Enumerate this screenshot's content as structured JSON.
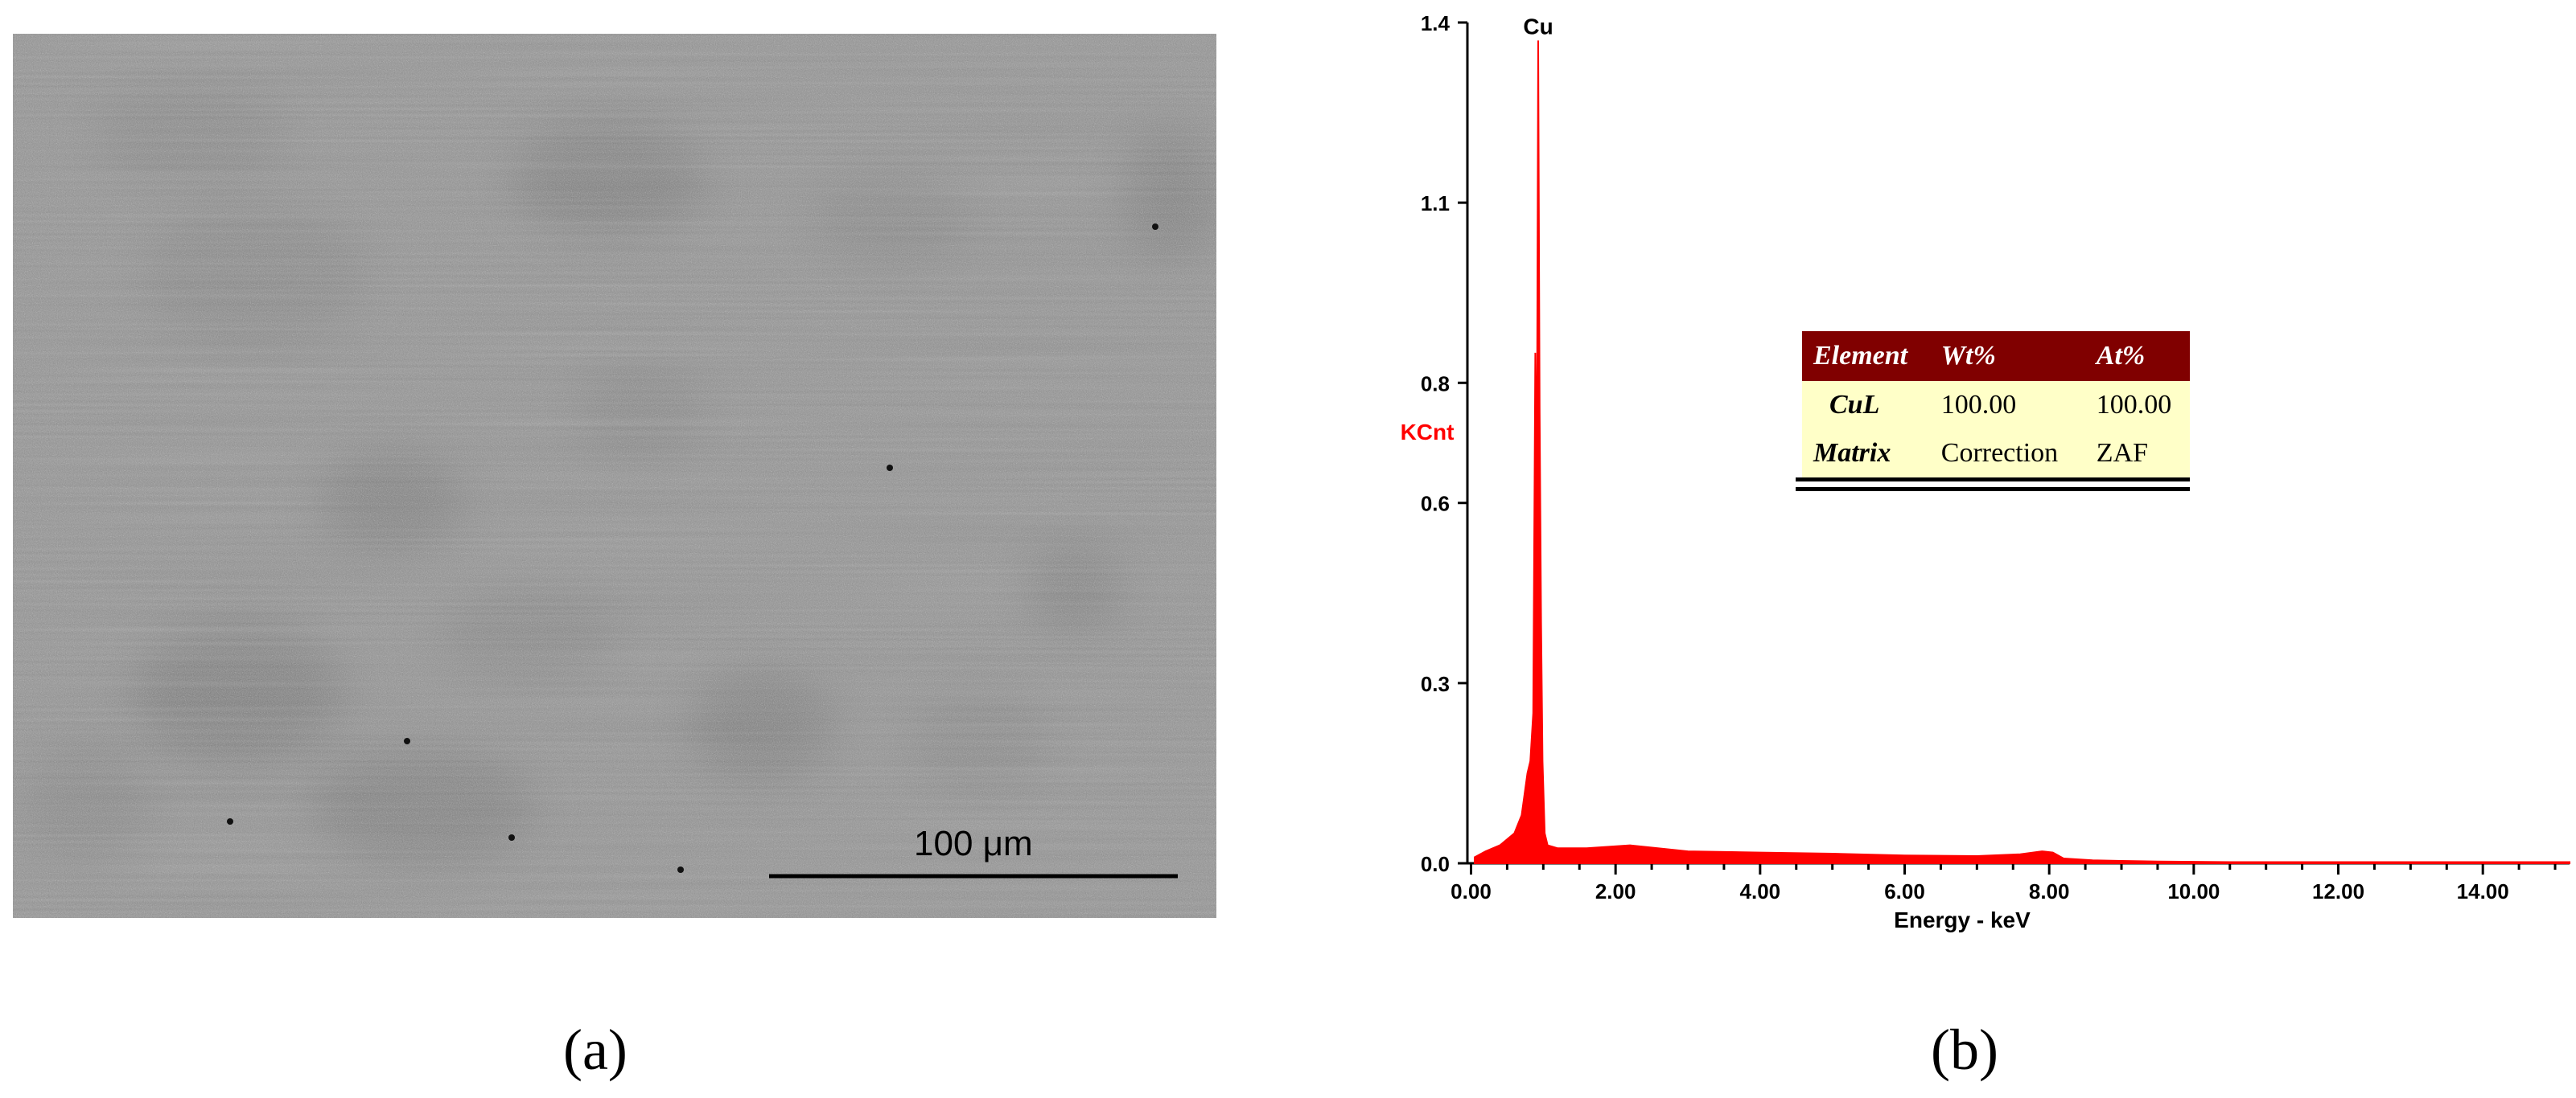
{
  "panel_a": {
    "label": "(a)",
    "scale_bar_text": "100 μm",
    "image_colors": {
      "background": "#8d8d8d",
      "grain_dark": "#6a6a6a",
      "grain_mid": "#7a7a7a"
    }
  },
  "panel_b": {
    "label": "(b)",
    "table": {
      "headers": [
        "Element",
        "Wt%",
        "At%"
      ],
      "rows": [
        [
          "CuL",
          "100.00",
          "100.00"
        ],
        [
          "Matrix",
          "Correction",
          "ZAF"
        ]
      ],
      "colors": {
        "header_bg": "#800000",
        "header_text": "#ffffff",
        "body_bg": "#ffffc8"
      }
    }
  },
  "chart_data": {
    "type": "line",
    "title": "",
    "xlabel": "Energy - keV",
    "ylabel": "KCnt",
    "xlim": [
      -0.05,
      15.2
    ],
    "ylim": [
      0,
      1.4
    ],
    "x_ticks": [
      "0.00",
      "2.00",
      "4.00",
      "6.00",
      "8.00",
      "10.00",
      "12.00",
      "14.00"
    ],
    "y_ticks": [
      "0.0",
      "0.3",
      "0.6",
      "0.8",
      "1.1",
      "1.4"
    ],
    "y_tick_values": [
      0,
      0.3,
      0.6,
      0.8,
      1.1,
      1.4
    ],
    "series_color": "#ff0000",
    "ylabel_color": "#ff0000",
    "annotations": [
      {
        "text": "Cu",
        "x": 0.93,
        "y": 1.37
      }
    ],
    "series": [
      {
        "x": [
          0.05,
          0.2,
          0.4,
          0.6,
          0.7,
          0.78,
          0.82,
          0.86,
          0.89,
          0.91,
          0.93,
          0.95,
          0.97,
          0.99,
          1.02,
          1.06,
          1.2,
          1.6,
          2.2,
          3.0,
          4.0,
          5.0,
          6.0,
          7.0,
          7.6,
          7.9,
          8.05,
          8.2,
          8.6,
          9.0,
          9.5,
          10.5,
          12.0,
          14.0,
          15.2
        ],
        "y": [
          0.01,
          0.02,
          0.03,
          0.05,
          0.08,
          0.15,
          0.17,
          0.25,
          0.85,
          0.6,
          1.37,
          0.75,
          0.4,
          0.17,
          0.05,
          0.03,
          0.025,
          0.025,
          0.03,
          0.02,
          0.018,
          0.016,
          0.013,
          0.012,
          0.015,
          0.02,
          0.018,
          0.008,
          0.005,
          0.004,
          0.003,
          0.002,
          0.002,
          0.002,
          0.002
        ]
      }
    ]
  }
}
